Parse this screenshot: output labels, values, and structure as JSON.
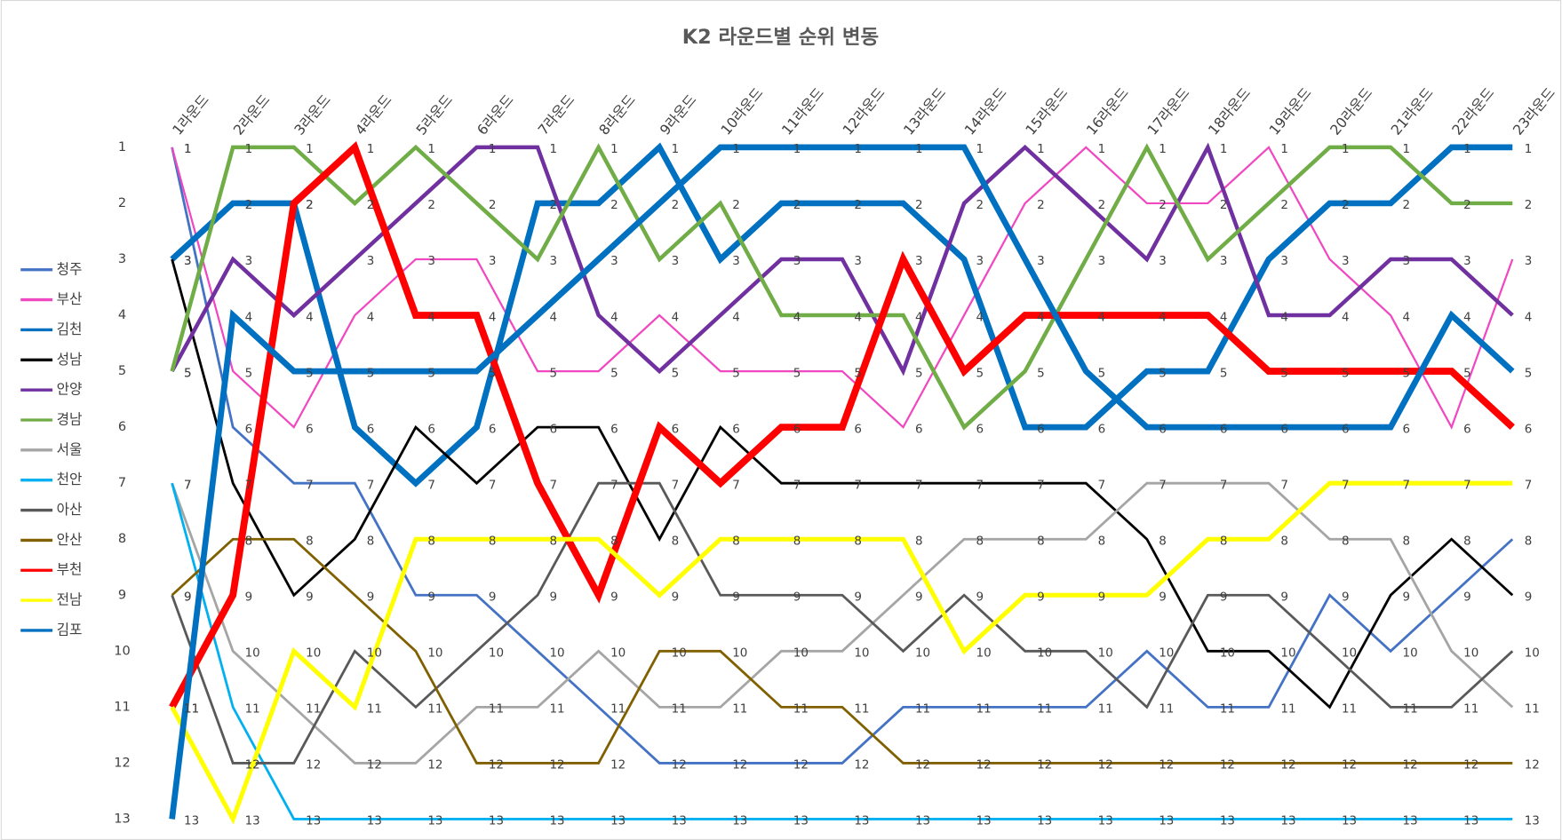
{
  "chart_data": {
    "type": "line",
    "title": "K2 라운드별 순위 변동",
    "categories": [
      "1라운드",
      "2라운드",
      "3라운드",
      "4라운드",
      "5라운드",
      "6라운드",
      "7라운드",
      "8라운드",
      "9라운드",
      "10라운드",
      "11라운드",
      "12라운드",
      "13라운드",
      "14라운드",
      "15라운드",
      "16라운드",
      "17라운드",
      "18라운드",
      "19라운드",
      "20라운드",
      "21라운드",
      "22라운드",
      "23라운드"
    ],
    "ylim": [
      1,
      13
    ],
    "yticks": [
      1,
      2,
      3,
      4,
      5,
      6,
      7,
      8,
      9,
      10,
      11,
      12,
      13
    ],
    "y_inverted": true,
    "grid": false,
    "legend": "left",
    "data_labels": true,
    "series": [
      {
        "name": "청주",
        "color": "#4472c4",
        "values": [
          1,
          6,
          7,
          7,
          9,
          9,
          10,
          11,
          12,
          12,
          12,
          12,
          11,
          11,
          11,
          11,
          10,
          11,
          11,
          9,
          10,
          9,
          8
        ]
      },
      {
        "name": "부산",
        "color": "#f048c0",
        "values": [
          1,
          5,
          6,
          4,
          3,
          3,
          5,
          5,
          4,
          5,
          5,
          5,
          6,
          4,
          2,
          1,
          2,
          2,
          1,
          3,
          4,
          6,
          3
        ]
      },
      {
        "name": "김천",
        "color": "#0070c0",
        "values": [
          3,
          2,
          2,
          6,
          7,
          6,
          2,
          2,
          1,
          3,
          2,
          2,
          2,
          3,
          6,
          6,
          5,
          5,
          3,
          2,
          2,
          1,
          1
        ]
      },
      {
        "name": "성남",
        "color": "#000000",
        "values": [
          3,
          7,
          9,
          8,
          6,
          7,
          6,
          6,
          8,
          6,
          7,
          7,
          7,
          7,
          7,
          7,
          8,
          10,
          10,
          11,
          9,
          8,
          9
        ]
      },
      {
        "name": "안양",
        "color": "#7030a0",
        "values": [
          5,
          3,
          4,
          3,
          2,
          1,
          1,
          4,
          5,
          4,
          3,
          3,
          5,
          2,
          1,
          2,
          3,
          1,
          4,
          4,
          3,
          3,
          4
        ]
      },
      {
        "name": "경남",
        "color": "#70ad47",
        "values": [
          5,
          1,
          1,
          2,
          1,
          2,
          3,
          1,
          3,
          2,
          4,
          4,
          4,
          6,
          5,
          3,
          1,
          3,
          2,
          1,
          1,
          2,
          2
        ]
      },
      {
        "name": "서울",
        "color": "#a5a5a5",
        "values": [
          7,
          10,
          11,
          12,
          12,
          11,
          11,
          10,
          11,
          11,
          10,
          10,
          9,
          8,
          8,
          8,
          7,
          7,
          7,
          8,
          8,
          10,
          11
        ]
      },
      {
        "name": "천안",
        "color": "#00b0f0",
        "values": [
          7,
          11,
          13,
          13,
          13,
          13,
          13,
          13,
          13,
          13,
          13,
          13,
          13,
          13,
          13,
          13,
          13,
          13,
          13,
          13,
          13,
          13,
          13
        ]
      },
      {
        "name": "아산",
        "color": "#595959",
        "values": [
          9,
          12,
          12,
          10,
          11,
          10,
          9,
          7,
          7,
          9,
          9,
          9,
          10,
          9,
          10,
          10,
          11,
          9,
          9,
          10,
          11,
          11,
          10
        ]
      },
      {
        "name": "안산",
        "color": "#806000",
        "values": [
          9,
          8,
          8,
          9,
          10,
          12,
          12,
          12,
          10,
          10,
          11,
          11,
          12,
          12,
          12,
          12,
          12,
          12,
          12,
          12,
          12,
          12,
          12
        ]
      },
      {
        "name": "부천",
        "color": "#ff0000",
        "values": [
          11,
          9,
          2,
          1,
          4,
          4,
          7,
          9,
          6,
          7,
          6,
          6,
          3,
          5,
          4,
          4,
          4,
          4,
          5,
          5,
          5,
          5,
          6
        ]
      },
      {
        "name": "전남",
        "color": "#ffff00",
        "values": [
          11,
          13,
          10,
          11,
          8,
          8,
          8,
          8,
          9,
          8,
          8,
          8,
          8,
          10,
          9,
          9,
          9,
          8,
          8,
          7,
          7,
          7,
          7
        ]
      },
      {
        "name": "김포",
        "color": "#0070c0",
        "values": [
          13,
          4,
          5,
          5,
          5,
          5,
          4,
          3,
          2,
          1,
          1,
          1,
          1,
          1,
          3,
          5,
          6,
          6,
          6,
          6,
          6,
          4,
          5
        ]
      }
    ]
  }
}
